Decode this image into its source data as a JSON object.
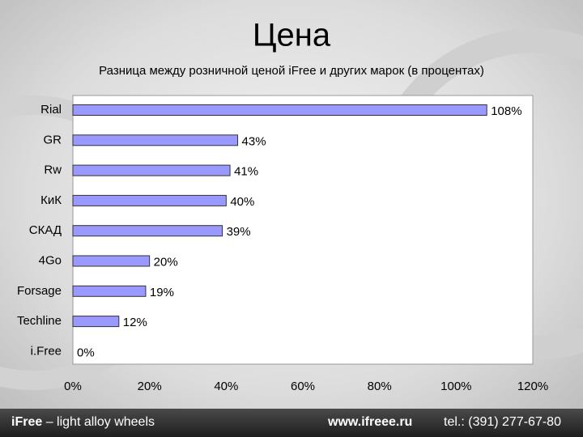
{
  "chart_data": {
    "type": "barh",
    "title": "Цена",
    "subtitle": "Разница между розничной ценой iFree и других марок (в процентах)",
    "categories": [
      "Rial",
      "GR",
      "Rw",
      "КиК",
      "СКАД",
      "4Go",
      "Forsage",
      "Techline",
      "i.Free"
    ],
    "values": [
      108,
      43,
      41,
      40,
      39,
      20,
      19,
      12,
      0
    ],
    "value_labels": [
      "108%",
      "43%",
      "41%",
      "40%",
      "39%",
      "20%",
      "19%",
      "12%",
      "0%"
    ],
    "color": "#9999ff",
    "xlim": [
      0,
      120
    ],
    "xticks": [
      {
        "value": 0,
        "label": "0%"
      },
      {
        "value": 20,
        "label": "20%"
      },
      {
        "value": 40,
        "label": "40%"
      },
      {
        "value": 60,
        "label": "60%"
      },
      {
        "value": 80,
        "label": "80%"
      },
      {
        "value": 100,
        "label": "100%"
      },
      {
        "value": 120,
        "label": "120%"
      }
    ]
  },
  "footer": {
    "brand": "iFree",
    "tagline": "– light alloy wheels",
    "website": "www.ifreee.ru",
    "phone": "tel.: (391) 277-67-80"
  }
}
